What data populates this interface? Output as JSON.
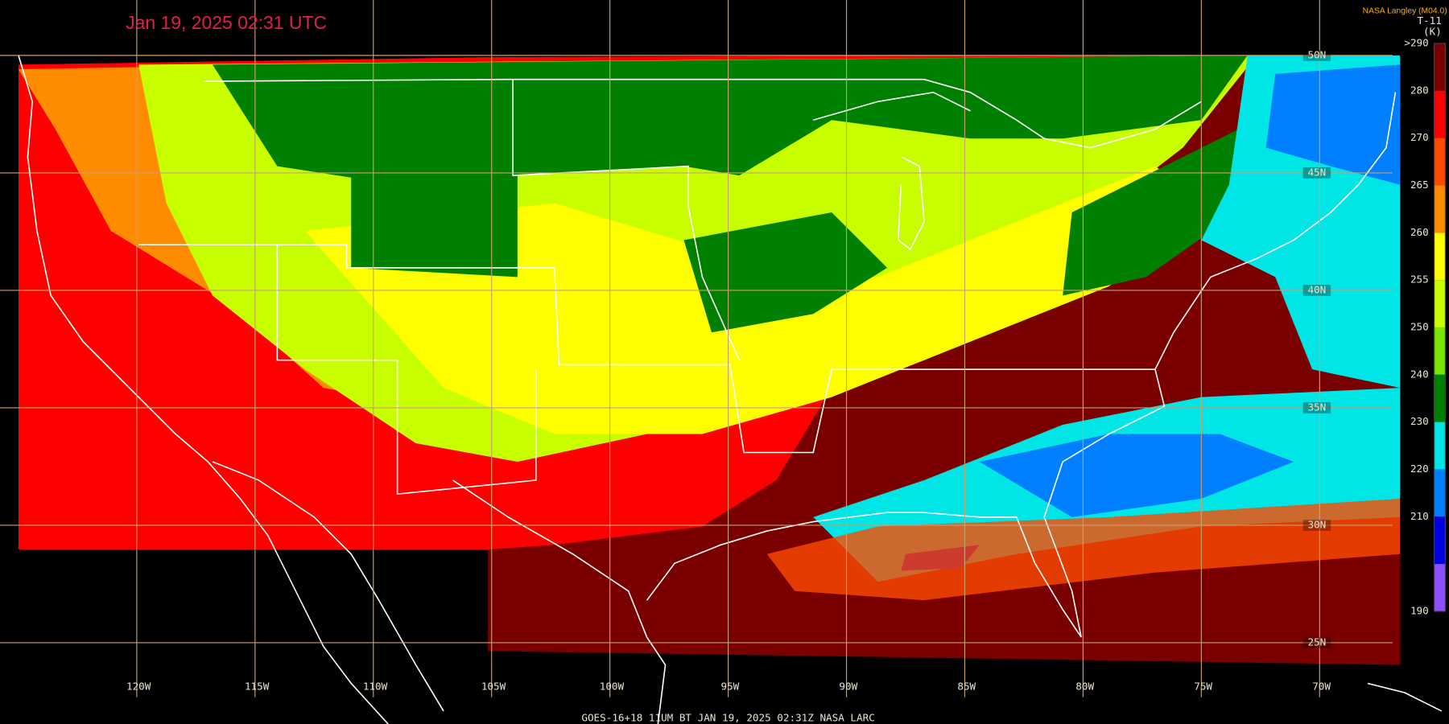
{
  "header": {
    "timestamp": "Jan 19, 2025 02:31 UTC",
    "source": "NASA Langley (M04.0)",
    "product": "T-11",
    "unit": "(K)"
  },
  "map": {
    "longitude_labels": [
      "120W",
      "115W",
      "110W",
      "105W",
      "100W",
      "95W",
      "90W",
      "85W",
      "80W",
      "75W",
      "70W"
    ],
    "latitude_labels": [
      "50N",
      "45N",
      "40N",
      "35N",
      "30N",
      "25N"
    ]
  },
  "colorbar": {
    "entries": [
      {
        "label": ">290",
        "color": "#7a0000"
      },
      {
        "label": "280",
        "color": "#ff0000"
      },
      {
        "label": "270",
        "color": "#ff4a00"
      },
      {
        "label": "265",
        "color": "#ff8c00"
      },
      {
        "label": "260",
        "color": "#ffff00"
      },
      {
        "label": "255",
        "color": "#c8ff00"
      },
      {
        "label": "250",
        "color": "#78e600"
      },
      {
        "label": "240",
        "color": "#008000"
      },
      {
        "label": "230",
        "color": "#00e6e6"
      },
      {
        "label": "220",
        "color": "#0080ff"
      },
      {
        "label": "210",
        "color": "#0000e0"
      },
      {
        "label": "190",
        "color": "#9050ff"
      }
    ]
  },
  "footer": {
    "caption": "GOES-16+18  11UM BT  JAN 19, 2025 02:31Z  NASA LARC"
  }
}
